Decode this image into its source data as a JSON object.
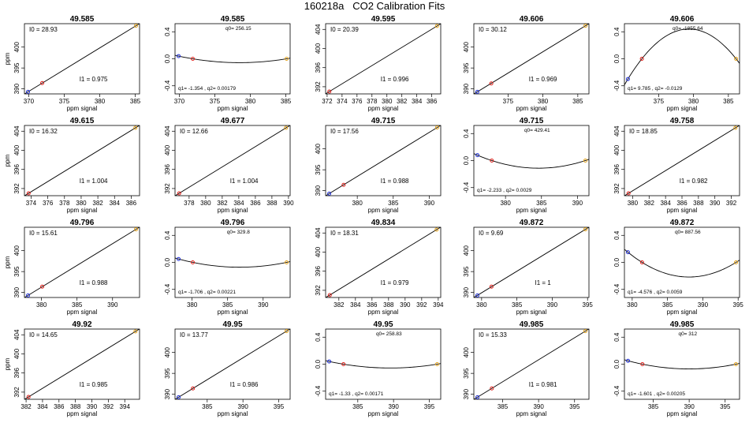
{
  "figure": {
    "title": "160218a   CO2 Calibration Fits",
    "colors": {
      "line": "#000000",
      "point_low": "#1f2fd6",
      "point_mid": "#e0201a",
      "point_high": "#e3a21a"
    }
  },
  "chart_data": [
    {
      "type": "line",
      "fit": "linear",
      "title": "49.585",
      "xlabel": "ppm signal",
      "ylabel": "ppm",
      "xlim": [
        369.4,
        385.6
      ],
      "ylim": [
        388.8,
        405.6
      ],
      "xticks": [
        370,
        375,
        380,
        385
      ],
      "yticks": [
        390,
        395,
        400
      ],
      "points": [
        [
          369.9,
          389.3
        ],
        [
          371.9,
          391.4
        ],
        [
          385.1,
          405.1
        ]
      ],
      "annotations": [
        {
          "text": "I0 =  28.93",
          "pos": "top-left"
        },
        {
          "text": "I1 =  0.975",
          "pos": "bottom-right"
        }
      ]
    },
    {
      "type": "line",
      "fit": "quadratic",
      "title": "49.585",
      "xlabel": "ppm signal",
      "ylabel": "",
      "xlim": [
        369.4,
        385.6
      ],
      "ylim": [
        -0.52,
        0.52
      ],
      "xticks": [
        370,
        375,
        380,
        385
      ],
      "yticks": [
        -0.4,
        0.0,
        0.4
      ],
      "points": [
        [
          369.9,
          0.04
        ],
        [
          371.9,
          0.0
        ],
        [
          385.1,
          0.0
        ]
      ],
      "annotations": [
        {
          "text": "q0=  256.15",
          "pos": "top-center"
        },
        {
          "text": "q1=  -1.354 ,  q2=  0.00179",
          "pos": "bottom-left"
        }
      ]
    },
    {
      "type": "line",
      "fit": "linear",
      "title": "49.595",
      "xlabel": "ppm signal",
      "ylabel": "",
      "xlim": [
        371.8,
        387.2
      ],
      "ylim": [
        390.5,
        405.2
      ],
      "xticks": [
        372,
        374,
        376,
        378,
        380,
        382,
        384,
        386
      ],
      "yticks": [
        392,
        396,
        400,
        404
      ],
      "points": [
        [
          372.3,
          391.0
        ],
        [
          386.7,
          404.7
        ]
      ],
      "annotations": [
        {
          "text": "I0 =  20.39",
          "pos": "top-left"
        },
        {
          "text": "I1 =  0.996",
          "pos": "bottom-right"
        }
      ]
    },
    {
      "type": "line",
      "fit": "linear",
      "title": "49.606",
      "xlabel": "ppm signal",
      "ylabel": "",
      "xlim": [
        370.1,
        386.6
      ],
      "ylim": [
        388.8,
        405.6
      ],
      "xticks": [
        375,
        380,
        385
      ],
      "yticks": [
        390,
        395,
        400
      ],
      "points": [
        [
          370.6,
          389.3
        ],
        [
          372.6,
          391.3
        ],
        [
          386.1,
          405.1
        ]
      ],
      "annotations": [
        {
          "text": "I0 =  30.12",
          "pos": "top-left"
        },
        {
          "text": "I1 =  0.969",
          "pos": "bottom-right"
        }
      ]
    },
    {
      "type": "line",
      "fit": "quadratic",
      "title": "49.606",
      "xlabel": "ppm signal",
      "ylabel": "",
      "xlim": [
        370.1,
        386.6
      ],
      "ylim": [
        -0.52,
        0.52
      ],
      "xticks": [
        375,
        380,
        385
      ],
      "yticks": [
        -0.4,
        0.0,
        0.4
      ],
      "points": [
        [
          370.6,
          -0.3
        ],
        [
          372.6,
          0.0
        ],
        [
          386.1,
          0.0
        ]
      ],
      "annotations": [
        {
          "text": "q0=  -1855.64",
          "pos": "top-center"
        },
        {
          "text": "q1=  9.785 ,  q2=  -0.0129",
          "pos": "bottom-left"
        }
      ]
    },
    {
      "type": "line",
      "fit": "linear",
      "title": "49.615",
      "xlabel": "ppm signal",
      "ylabel": "ppm",
      "xlim": [
        373.2,
        387.0
      ],
      "ylim": [
        390.5,
        405.2
      ],
      "xticks": [
        374,
        376,
        378,
        380,
        382,
        384,
        386
      ],
      "yticks": [
        392,
        396,
        400,
        404
      ],
      "points": [
        [
          373.7,
          391.0
        ],
        [
          386.5,
          404.7
        ]
      ],
      "annotations": [
        {
          "text": "I0 =  16.32",
          "pos": "top-left"
        },
        {
          "text": "I1 =  1.004",
          "pos": "bottom-right"
        }
      ]
    },
    {
      "type": "line",
      "fit": "linear",
      "title": "49.677",
      "xlabel": "ppm signal",
      "ylabel": "",
      "xlim": [
        376.3,
        390.2
      ],
      "ylim": [
        390.5,
        405.2
      ],
      "xticks": [
        378,
        380,
        382,
        384,
        386,
        388,
        390
      ],
      "yticks": [
        392,
        396,
        400,
        404
      ],
      "points": [
        [
          376.8,
          391.0
        ],
        [
          389.7,
          404.7
        ]
      ],
      "annotations": [
        {
          "text": "I0 =  12.66",
          "pos": "top-left"
        },
        {
          "text": "I1 =  1.004",
          "pos": "bottom-right"
        }
      ]
    },
    {
      "type": "line",
      "fit": "linear",
      "title": "49.715",
      "xlabel": "ppm signal",
      "ylabel": "",
      "xlim": [
        375.6,
        391.6
      ],
      "ylim": [
        388.8,
        405.6
      ],
      "xticks": [
        380,
        385,
        390
      ],
      "yticks": [
        390,
        395,
        400
      ],
      "points": [
        [
          376.1,
          389.3
        ],
        [
          378.1,
          391.4
        ],
        [
          391.1,
          405.1
        ]
      ],
      "annotations": [
        {
          "text": "I0 =  17.56",
          "pos": "top-left"
        },
        {
          "text": "I1 =  0.988",
          "pos": "bottom-right"
        }
      ]
    },
    {
      "type": "line",
      "fit": "quadratic",
      "title": "49.715",
      "xlabel": "ppm signal",
      "ylabel": "",
      "xlim": [
        375.6,
        391.6
      ],
      "ylim": [
        -0.52,
        0.52
      ],
      "xticks": [
        380,
        385,
        390
      ],
      "yticks": [
        -0.4,
        0.0,
        0.4
      ],
      "points": [
        [
          376.1,
          0.08
        ],
        [
          378.1,
          0.0
        ],
        [
          391.1,
          0.0
        ]
      ],
      "annotations": [
        {
          "text": "q0=  429.41",
          "pos": "top-center"
        },
        {
          "text": "q1=  -2.233 ,  q2=  0.0029",
          "pos": "bottom-left"
        }
      ]
    },
    {
      "type": "line",
      "fit": "linear",
      "title": "49.758",
      "xlabel": "ppm signal",
      "ylabel": "",
      "xlim": [
        379.0,
        393.0
      ],
      "ylim": [
        390.5,
        405.2
      ],
      "xticks": [
        380,
        382,
        384,
        386,
        388,
        390,
        392
      ],
      "yticks": [
        392,
        396,
        400,
        404
      ],
      "points": [
        [
          379.5,
          391.0
        ],
        [
          392.5,
          404.7
        ]
      ],
      "annotations": [
        {
          "text": "I0 =  18.85",
          "pos": "top-left"
        },
        {
          "text": "I1 =  0.982",
          "pos": "bottom-right"
        }
      ]
    },
    {
      "type": "line",
      "fit": "linear",
      "title": "49.796",
      "xlabel": "ppm signal",
      "ylabel": "ppm",
      "xlim": [
        377.6,
        393.8
      ],
      "ylim": [
        388.8,
        405.6
      ],
      "xticks": [
        380,
        385,
        390
      ],
      "yticks": [
        390,
        395,
        400
      ],
      "points": [
        [
          378.1,
          389.3
        ],
        [
          380.1,
          391.4
        ],
        [
          393.3,
          405.1
        ]
      ],
      "annotations": [
        {
          "text": "I0 =  15.61",
          "pos": "top-left"
        },
        {
          "text": "I1 =  0.988",
          "pos": "bottom-right"
        }
      ]
    },
    {
      "type": "line",
      "fit": "quadratic",
      "title": "49.796",
      "xlabel": "ppm signal",
      "ylabel": "",
      "xlim": [
        377.6,
        393.8
      ],
      "ylim": [
        -0.52,
        0.52
      ],
      "xticks": [
        380,
        385,
        390
      ],
      "yticks": [
        -0.4,
        0.0,
        0.4
      ],
      "points": [
        [
          378.1,
          0.05
        ],
        [
          380.1,
          0.0
        ],
        [
          393.3,
          0.0
        ]
      ],
      "annotations": [
        {
          "text": "q0=  329.8",
          "pos": "top-center"
        },
        {
          "text": "q1=  -1.706 ,  q2=  0.00221",
          "pos": "bottom-left"
        }
      ]
    },
    {
      "type": "line",
      "fit": "linear",
      "title": "49.834",
      "xlabel": "ppm signal",
      "ylabel": "",
      "xlim": [
        380.4,
        394.3
      ],
      "ylim": [
        390.5,
        405.2
      ],
      "xticks": [
        382,
        384,
        386,
        388,
        390,
        392,
        394
      ],
      "yticks": [
        392,
        396,
        400,
        404
      ],
      "points": [
        [
          380.9,
          391.0
        ],
        [
          393.8,
          404.7
        ]
      ],
      "annotations": [
        {
          "text": "I0 =  18.31",
          "pos": "top-left"
        },
        {
          "text": "I1 =  0.979",
          "pos": "bottom-right"
        }
      ]
    },
    {
      "type": "line",
      "fit": "linear",
      "title": "49.872",
      "xlabel": "ppm signal",
      "ylabel": "",
      "xlim": [
        378.9,
        395.2
      ],
      "ylim": [
        388.8,
        405.6
      ],
      "xticks": [
        380,
        385,
        390,
        395
      ],
      "yticks": [
        390,
        395,
        400
      ],
      "points": [
        [
          379.4,
          389.3
        ],
        [
          381.4,
          391.4
        ],
        [
          394.7,
          405.1
        ]
      ],
      "annotations": [
        {
          "text": "I0 =  9.69",
          "pos": "top-left"
        },
        {
          "text": "I1 =  1",
          "pos": "bottom-right"
        }
      ]
    },
    {
      "type": "line",
      "fit": "quadratic",
      "title": "49.872",
      "xlabel": "ppm signal",
      "ylabel": "",
      "xlim": [
        378.9,
        395.2
      ],
      "ylim": [
        -0.52,
        0.52
      ],
      "xticks": [
        380,
        385,
        390,
        395
      ],
      "yticks": [
        -0.4,
        0.0,
        0.4
      ],
      "points": [
        [
          379.4,
          0.15
        ],
        [
          381.4,
          0.0
        ],
        [
          394.7,
          0.0
        ]
      ],
      "annotations": [
        {
          "text": "q0=  887.56",
          "pos": "top-center"
        },
        {
          "text": "q1=  -4.576 ,  q2=  0.0059",
          "pos": "bottom-left"
        }
      ]
    },
    {
      "type": "line",
      "fit": "linear",
      "title": "49.92",
      "xlabel": "ppm signal",
      "ylabel": "ppm",
      "xlim": [
        381.8,
        395.8
      ],
      "ylim": [
        390.5,
        405.2
      ],
      "xticks": [
        382,
        384,
        386,
        388,
        390,
        392,
        394
      ],
      "yticks": [
        392,
        396,
        400,
        404
      ],
      "points": [
        [
          382.3,
          391.0
        ],
        [
          395.3,
          404.7
        ]
      ],
      "annotations": [
        {
          "text": "I0 =  14.65",
          "pos": "top-left"
        },
        {
          "text": "I1 =  0.985",
          "pos": "bottom-right"
        }
      ]
    },
    {
      "type": "line",
      "fit": "linear",
      "title": "49.95",
      "xlabel": "ppm signal",
      "ylabel": "",
      "xlim": [
        380.5,
        396.6
      ],
      "ylim": [
        388.8,
        405.6
      ],
      "xticks": [
        385,
        390,
        395
      ],
      "yticks": [
        390,
        395,
        400
      ],
      "points": [
        [
          381.0,
          389.3
        ],
        [
          383.0,
          391.4
        ],
        [
          396.1,
          405.1
        ]
      ],
      "annotations": [
        {
          "text": "I0 =  13.77",
          "pos": "top-left"
        },
        {
          "text": "I1 =  0.986",
          "pos": "bottom-right"
        }
      ]
    },
    {
      "type": "line",
      "fit": "quadratic",
      "title": "49.95",
      "xlabel": "ppm signal",
      "ylabel": "",
      "xlim": [
        380.5,
        396.6
      ],
      "ylim": [
        -0.52,
        0.52
      ],
      "xticks": [
        385,
        390,
        395
      ],
      "yticks": [
        -0.4,
        0.0,
        0.4
      ],
      "points": [
        [
          381.0,
          0.04
        ],
        [
          383.0,
          0.0
        ],
        [
          396.1,
          0.0
        ]
      ],
      "annotations": [
        {
          "text": "q0=  258.83",
          "pos": "top-center"
        },
        {
          "text": "q1=  -1.33 ,  q2=  0.00171",
          "pos": "bottom-left"
        }
      ]
    },
    {
      "type": "line",
      "fit": "linear",
      "title": "49.985",
      "xlabel": "ppm signal",
      "ylabel": "",
      "xlim": [
        381.0,
        397.0
      ],
      "ylim": [
        388.8,
        405.6
      ],
      "xticks": [
        385,
        390,
        395
      ],
      "yticks": [
        390,
        395,
        400
      ],
      "points": [
        [
          381.5,
          389.3
        ],
        [
          383.5,
          391.4
        ],
        [
          396.5,
          405.1
        ]
      ],
      "annotations": [
        {
          "text": "I0 =  15.33",
          "pos": "top-left"
        },
        {
          "text": "I1 =  0.981",
          "pos": "bottom-right"
        }
      ]
    },
    {
      "type": "line",
      "fit": "quadratic",
      "title": "49.985",
      "xlabel": "ppm signal",
      "ylabel": "",
      "xlim": [
        381.0,
        397.0
      ],
      "ylim": [
        -0.52,
        0.52
      ],
      "xticks": [
        385,
        390,
        395
      ],
      "yticks": [
        -0.4,
        0.0,
        0.4
      ],
      "points": [
        [
          381.5,
          0.05
        ],
        [
          383.5,
          0.0
        ],
        [
          396.5,
          0.0
        ]
      ],
      "annotations": [
        {
          "text": "q0=  312",
          "pos": "top-center"
        },
        {
          "text": "q1=  -1.601 ,  q2=  0.00205",
          "pos": "bottom-left"
        }
      ]
    }
  ]
}
